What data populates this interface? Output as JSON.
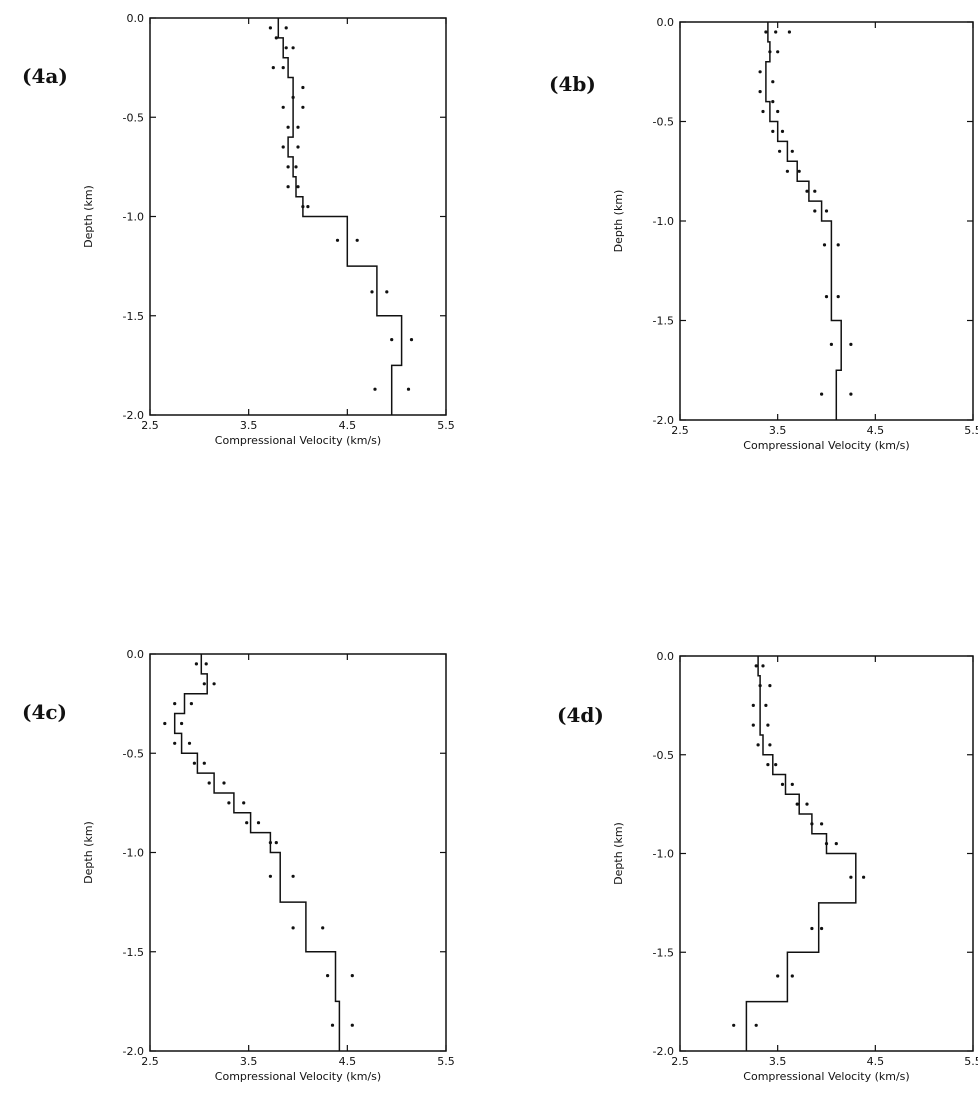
{
  "chart_data": [
    {
      "panel": "(4a)",
      "type": "line",
      "xlabel": "Compressional Velocity (km/s)",
      "ylabel": "Depth (km)",
      "xlim": [
        2.5,
        5.5
      ],
      "ylim": [
        -2.0,
        0.0
      ],
      "xticks": [
        "2.5",
        "3.5",
        "4.5",
        "5.5"
      ],
      "yticks": [
        "0.0",
        "-0.5",
        "-1.0",
        "-1.5",
        "-2.0"
      ],
      "grid": false,
      "series": [
        {
          "kind": "step",
          "points": [
            [
              3.8,
              0.0
            ],
            [
              3.8,
              -0.1
            ],
            [
              3.85,
              -0.1
            ],
            [
              3.85,
              -0.2
            ],
            [
              3.9,
              -0.2
            ],
            [
              3.9,
              -0.3
            ],
            [
              3.95,
              -0.3
            ],
            [
              3.95,
              -0.6
            ],
            [
              3.9,
              -0.6
            ],
            [
              3.9,
              -0.7
            ],
            [
              3.95,
              -0.7
            ],
            [
              3.95,
              -0.8
            ],
            [
              3.98,
              -0.8
            ],
            [
              3.98,
              -0.9
            ],
            [
              4.05,
              -0.9
            ],
            [
              4.05,
              -1.0
            ],
            [
              4.5,
              -1.0
            ],
            [
              4.5,
              -1.25
            ],
            [
              4.8,
              -1.25
            ],
            [
              4.8,
              -1.5
            ],
            [
              5.05,
              -1.5
            ],
            [
              5.05,
              -1.75
            ],
            [
              4.95,
              -1.75
            ],
            [
              4.95,
              -2.0
            ]
          ]
        },
        {
          "kind": "scatter",
          "points": [
            [
              3.72,
              -0.05
            ],
            [
              3.88,
              -0.05
            ],
            [
              3.78,
              -0.1
            ],
            [
              3.88,
              -0.15
            ],
            [
              3.95,
              -0.15
            ],
            [
              3.75,
              -0.25
            ],
            [
              3.85,
              -0.25
            ],
            [
              4.05,
              -0.35
            ],
            [
              3.95,
              -0.4
            ],
            [
              3.85,
              -0.45
            ],
            [
              4.05,
              -0.45
            ],
            [
              3.9,
              -0.55
            ],
            [
              4.0,
              -0.55
            ],
            [
              3.85,
              -0.65
            ],
            [
              4.0,
              -0.65
            ],
            [
              3.9,
              -0.75
            ],
            [
              3.98,
              -0.75
            ],
            [
              3.9,
              -0.85
            ],
            [
              4.0,
              -0.85
            ],
            [
              4.05,
              -0.95
            ],
            [
              4.1,
              -0.95
            ],
            [
              4.4,
              -1.12
            ],
            [
              4.6,
              -1.12
            ],
            [
              4.75,
              -1.38
            ],
            [
              4.9,
              -1.38
            ],
            [
              4.95,
              -1.62
            ],
            [
              5.15,
              -1.62
            ],
            [
              4.78,
              -1.87
            ],
            [
              5.12,
              -1.87
            ]
          ]
        }
      ]
    },
    {
      "panel": "(4b)",
      "type": "line",
      "xlabel": "Compressional Velocity (km/s)",
      "ylabel": "Depth (km)",
      "xlim": [
        2.5,
        5.5
      ],
      "ylim": [
        -2.0,
        0.0
      ],
      "xticks": [
        "2.5",
        "3.5",
        "4.5",
        "5.5"
      ],
      "yticks": [
        "0.0",
        "-0.5",
        "-1.0",
        "-1.5",
        "-2.0"
      ],
      "grid": false,
      "series": [
        {
          "kind": "step",
          "points": [
            [
              3.4,
              0.0
            ],
            [
              3.4,
              -0.1
            ],
            [
              3.42,
              -0.1
            ],
            [
              3.42,
              -0.2
            ],
            [
              3.38,
              -0.2
            ],
            [
              3.38,
              -0.4
            ],
            [
              3.42,
              -0.4
            ],
            [
              3.42,
              -0.5
            ],
            [
              3.5,
              -0.5
            ],
            [
              3.5,
              -0.6
            ],
            [
              3.6,
              -0.6
            ],
            [
              3.6,
              -0.7
            ],
            [
              3.7,
              -0.7
            ],
            [
              3.7,
              -0.8
            ],
            [
              3.82,
              -0.8
            ],
            [
              3.82,
              -0.9
            ],
            [
              3.95,
              -0.9
            ],
            [
              3.95,
              -1.0
            ],
            [
              4.05,
              -1.0
            ],
            [
              4.05,
              -1.5
            ],
            [
              4.15,
              -1.5
            ],
            [
              4.15,
              -1.75
            ],
            [
              4.1,
              -1.75
            ],
            [
              4.1,
              -2.0
            ]
          ]
        },
        {
          "kind": "scatter",
          "points": [
            [
              3.38,
              -0.05
            ],
            [
              3.48,
              -0.05
            ],
            [
              3.62,
              -0.05
            ],
            [
              3.42,
              -0.15
            ],
            [
              3.5,
              -0.15
            ],
            [
              3.32,
              -0.25
            ],
            [
              3.45,
              -0.3
            ],
            [
              3.32,
              -0.35
            ],
            [
              3.45,
              -0.4
            ],
            [
              3.35,
              -0.45
            ],
            [
              3.5,
              -0.45
            ],
            [
              3.45,
              -0.55
            ],
            [
              3.55,
              -0.55
            ],
            [
              3.52,
              -0.65
            ],
            [
              3.65,
              -0.65
            ],
            [
              3.6,
              -0.75
            ],
            [
              3.72,
              -0.75
            ],
            [
              3.8,
              -0.85
            ],
            [
              3.88,
              -0.85
            ],
            [
              3.88,
              -0.95
            ],
            [
              4.0,
              -0.95
            ],
            [
              3.98,
              -1.12
            ],
            [
              4.12,
              -1.12
            ],
            [
              4.0,
              -1.38
            ],
            [
              4.12,
              -1.38
            ],
            [
              4.05,
              -1.62
            ],
            [
              4.25,
              -1.62
            ],
            [
              3.95,
              -1.87
            ],
            [
              4.25,
              -1.87
            ]
          ]
        }
      ]
    },
    {
      "panel": "(4c)",
      "type": "line",
      "xlabel": "Compressional Velocity (km/s)",
      "ylabel": "Depth (km)",
      "xlim": [
        2.5,
        5.5
      ],
      "ylim": [
        -2.0,
        0.0
      ],
      "xticks": [
        "2.5",
        "3.5",
        "4.5",
        "5.5"
      ],
      "yticks": [
        "0.0",
        "-0.5",
        "-1.0",
        "-1.5",
        "-2.0"
      ],
      "grid": false,
      "series": [
        {
          "kind": "step",
          "points": [
            [
              3.02,
              0.0
            ],
            [
              3.02,
              -0.1
            ],
            [
              3.08,
              -0.1
            ],
            [
              3.08,
              -0.2
            ],
            [
              2.85,
              -0.2
            ],
            [
              2.85,
              -0.3
            ],
            [
              2.75,
              -0.3
            ],
            [
              2.75,
              -0.4
            ],
            [
              2.82,
              -0.4
            ],
            [
              2.82,
              -0.5
            ],
            [
              2.98,
              -0.5
            ],
            [
              2.98,
              -0.6
            ],
            [
              3.15,
              -0.6
            ],
            [
              3.15,
              -0.7
            ],
            [
              3.35,
              -0.7
            ],
            [
              3.35,
              -0.8
            ],
            [
              3.52,
              -0.8
            ],
            [
              3.52,
              -0.9
            ],
            [
              3.72,
              -0.9
            ],
            [
              3.72,
              -1.0
            ],
            [
              3.82,
              -1.0
            ],
            [
              3.82,
              -1.25
            ],
            [
              4.08,
              -1.25
            ],
            [
              4.08,
              -1.5
            ],
            [
              4.38,
              -1.5
            ],
            [
              4.38,
              -1.75
            ],
            [
              4.42,
              -1.75
            ],
            [
              4.42,
              -2.0
            ]
          ]
        },
        {
          "kind": "scatter",
          "points": [
            [
              2.97,
              -0.05
            ],
            [
              3.07,
              -0.05
            ],
            [
              3.05,
              -0.15
            ],
            [
              3.15,
              -0.15
            ],
            [
              2.75,
              -0.25
            ],
            [
              2.92,
              -0.25
            ],
            [
              2.65,
              -0.35
            ],
            [
              2.82,
              -0.35
            ],
            [
              2.75,
              -0.45
            ],
            [
              2.9,
              -0.45
            ],
            [
              2.95,
              -0.55
            ],
            [
              3.05,
              -0.55
            ],
            [
              3.1,
              -0.65
            ],
            [
              3.25,
              -0.65
            ],
            [
              3.3,
              -0.75
            ],
            [
              3.45,
              -0.75
            ],
            [
              3.48,
              -0.85
            ],
            [
              3.6,
              -0.85
            ],
            [
              3.72,
              -0.95
            ],
            [
              3.78,
              -0.95
            ],
            [
              3.72,
              -1.12
            ],
            [
              3.95,
              -1.12
            ],
            [
              3.95,
              -1.38
            ],
            [
              4.25,
              -1.38
            ],
            [
              4.3,
              -1.62
            ],
            [
              4.55,
              -1.62
            ],
            [
              4.35,
              -1.87
            ],
            [
              4.55,
              -1.87
            ]
          ]
        }
      ]
    },
    {
      "panel": "(4d)",
      "type": "line",
      "xlabel": "Compressional Velocity (km/s)",
      "ylabel": "Depth (km)",
      "xlim": [
        2.5,
        5.5
      ],
      "ylim": [
        -2.0,
        0.0
      ],
      "xticks": [
        "2.5",
        "3.5",
        "4.5",
        "5.5"
      ],
      "yticks": [
        "0.0",
        "-0.5",
        "-1.0",
        "-1.5",
        "-2.0"
      ],
      "grid": false,
      "series": [
        {
          "kind": "step",
          "points": [
            [
              3.3,
              0.0
            ],
            [
              3.3,
              -0.1
            ],
            [
              3.32,
              -0.1
            ],
            [
              3.32,
              -0.4
            ],
            [
              3.35,
              -0.4
            ],
            [
              3.35,
              -0.5
            ],
            [
              3.45,
              -0.5
            ],
            [
              3.45,
              -0.6
            ],
            [
              3.58,
              -0.6
            ],
            [
              3.58,
              -0.7
            ],
            [
              3.72,
              -0.7
            ],
            [
              3.72,
              -0.8
            ],
            [
              3.85,
              -0.8
            ],
            [
              3.85,
              -0.9
            ],
            [
              4.0,
              -0.9
            ],
            [
              4.0,
              -1.0
            ],
            [
              4.3,
              -1.0
            ],
            [
              4.3,
              -1.25
            ],
            [
              3.92,
              -1.25
            ],
            [
              3.92,
              -1.5
            ],
            [
              3.6,
              -1.5
            ],
            [
              3.6,
              -1.75
            ],
            [
              3.18,
              -1.75
            ],
            [
              3.18,
              -2.0
            ]
          ]
        },
        {
          "kind": "scatter",
          "points": [
            [
              3.28,
              -0.05
            ],
            [
              3.35,
              -0.05
            ],
            [
              3.32,
              -0.15
            ],
            [
              3.42,
              -0.15
            ],
            [
              3.25,
              -0.25
            ],
            [
              3.38,
              -0.25
            ],
            [
              3.25,
              -0.35
            ],
            [
              3.4,
              -0.35
            ],
            [
              3.3,
              -0.45
            ],
            [
              3.42,
              -0.45
            ],
            [
              3.4,
              -0.55
            ],
            [
              3.48,
              -0.55
            ],
            [
              3.55,
              -0.65
            ],
            [
              3.65,
              -0.65
            ],
            [
              3.7,
              -0.75
            ],
            [
              3.8,
              -0.75
            ],
            [
              3.85,
              -0.85
            ],
            [
              3.95,
              -0.85
            ],
            [
              4.0,
              -0.95
            ],
            [
              4.1,
              -0.95
            ],
            [
              4.25,
              -1.12
            ],
            [
              4.38,
              -1.12
            ],
            [
              3.85,
              -1.38
            ],
            [
              3.95,
              -1.38
            ],
            [
              3.5,
              -1.62
            ],
            [
              3.65,
              -1.62
            ],
            [
              3.05,
              -1.87
            ],
            [
              3.28,
              -1.87
            ]
          ]
        }
      ]
    }
  ]
}
